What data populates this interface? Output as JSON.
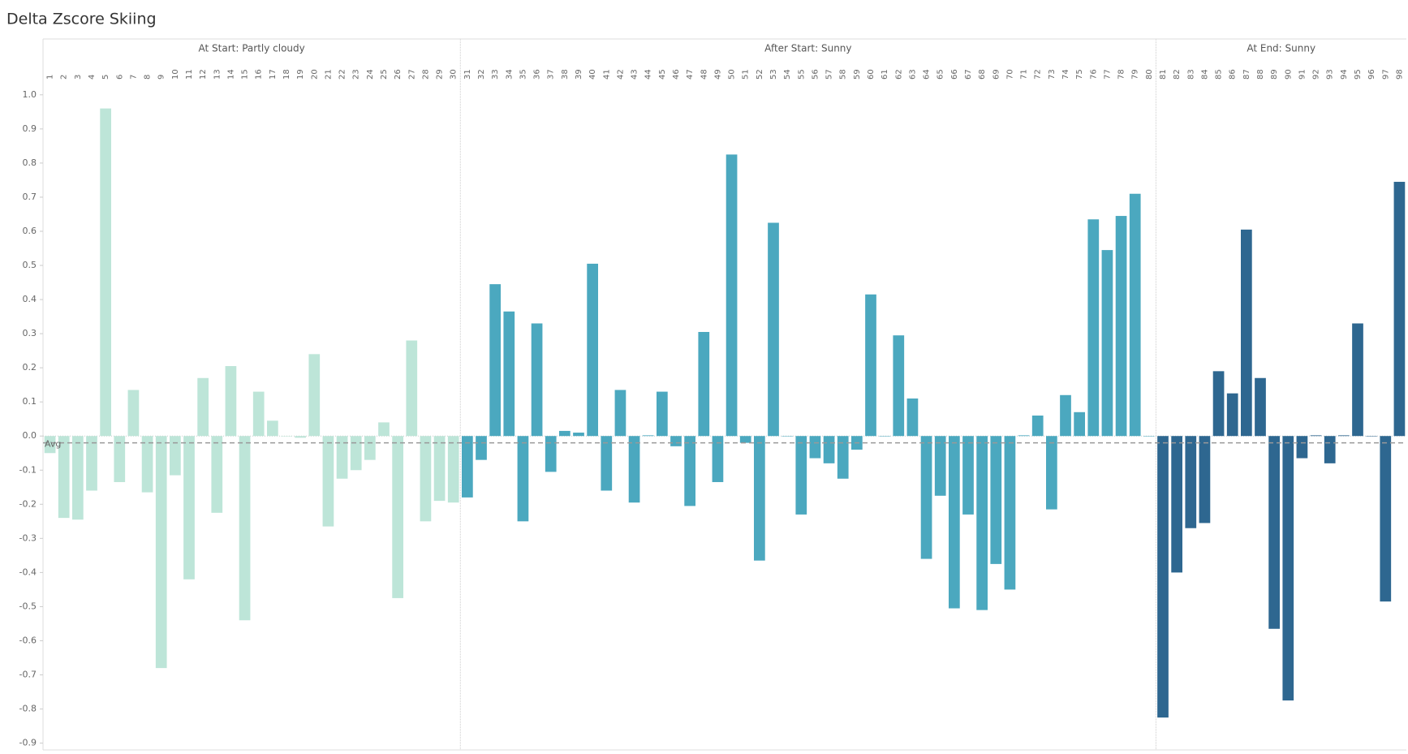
{
  "chart_data": {
    "type": "bar",
    "title": "Delta Zscore Skiing",
    "panes": [
      {
        "name": "At Start: Partly cloudy",
        "color": "#bde5d8",
        "categories": [
          "1",
          "2",
          "3",
          "4",
          "5",
          "6",
          "7",
          "8",
          "9",
          "10",
          "11",
          "12",
          "13",
          "14",
          "15",
          "16",
          "17",
          "18",
          "19",
          "20",
          "21",
          "22",
          "23",
          "24",
          "25",
          "26",
          "27",
          "28",
          "29",
          "30"
        ],
        "values": [
          -0.05,
          -0.24,
          -0.245,
          -0.16,
          0.96,
          -0.135,
          0.135,
          -0.165,
          -0.68,
          -0.115,
          -0.42,
          0.17,
          -0.225,
          0.205,
          -0.54,
          0.13,
          0.045,
          0,
          -0.005,
          0.24,
          -0.265,
          -0.125,
          -0.1,
          -0.07,
          0.04,
          -0.475,
          0.28,
          -0.25,
          -0.19,
          -0.195
        ]
      },
      {
        "name": "After Start: Sunny",
        "color": "#4ba8bf",
        "categories": [
          "31",
          "32",
          "33",
          "34",
          "35",
          "36",
          "37",
          "38",
          "39",
          "40",
          "41",
          "42",
          "43",
          "44",
          "45",
          "46",
          "47",
          "48",
          "49",
          "50",
          "51",
          "52",
          "53",
          "54",
          "55",
          "56",
          "57",
          "58",
          "59",
          "60",
          "61",
          "62",
          "63",
          "64",
          "65",
          "66",
          "67",
          "68",
          "69",
          "70",
          "71",
          "72",
          "73",
          "74",
          "75",
          "76",
          "77",
          "78",
          "79",
          "80"
        ],
        "values": [
          -0.18,
          -0.07,
          0.445,
          0.365,
          -0.25,
          0.33,
          -0.105,
          0.015,
          0.01,
          0.505,
          -0.16,
          0.135,
          -0.195,
          0.002,
          0.13,
          -0.03,
          -0.205,
          0.305,
          -0.135,
          0.825,
          -0.02,
          -0.365,
          0.625,
          0,
          -0.23,
          -0.065,
          -0.08,
          -0.125,
          -0.04,
          0.415,
          0,
          0.295,
          0.11,
          -0.36,
          -0.175,
          -0.505,
          -0.23,
          -0.51,
          -0.375,
          -0.45,
          0.002,
          0.06,
          -0.215,
          0.12,
          0.07,
          0.635,
          0.545,
          0.645,
          0.71,
          0
        ]
      },
      {
        "name": "At End: Sunny",
        "color": "#2e6790",
        "categories": [
          "81",
          "82",
          "83",
          "84",
          "85",
          "86",
          "87",
          "88",
          "89",
          "90",
          "91",
          "92",
          "93",
          "94",
          "95",
          "96",
          "97",
          "98"
        ],
        "values": [
          -0.825,
          -0.4,
          -0.27,
          -0.255,
          0.19,
          0.125,
          0.605,
          0.17,
          -0.565,
          -0.775,
          -0.065,
          0.002,
          -0.08,
          0.002,
          0.33,
          0,
          -0.485,
          0.745
        ]
      }
    ],
    "reference_line": {
      "label": "Avg",
      "value": -0.02
    },
    "ylim": [
      -0.92,
      1.04
    ],
    "yticks": [
      -0.9,
      -0.8,
      -0.7,
      -0.6,
      -0.5,
      -0.4,
      -0.3,
      -0.2,
      -0.1,
      {
        "value": 0,
        "label": "0.0"
      },
      0.1,
      0.2,
      0.3,
      0.4,
      0.5,
      0.6,
      0.7,
      0.8,
      0.9,
      {
        "value": 1,
        "label": "1.0"
      }
    ]
  }
}
